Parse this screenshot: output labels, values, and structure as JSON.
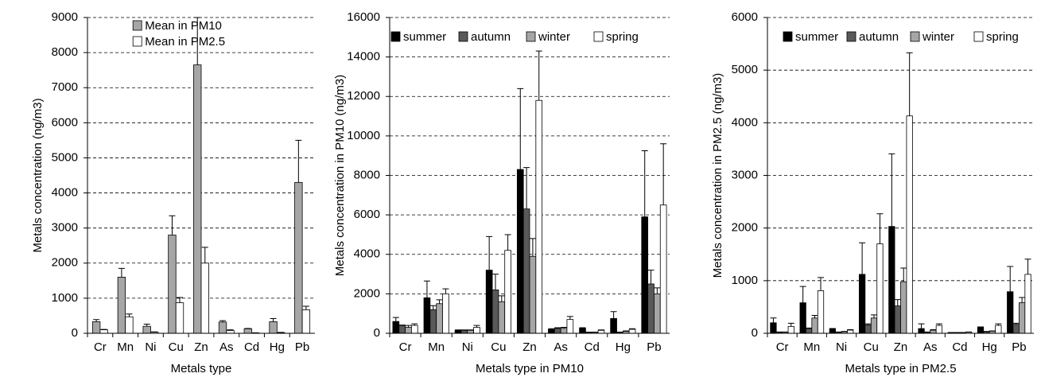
{
  "chart_data": [
    {
      "type": "bar",
      "ylabel": "Metals concentration (ng/m3)",
      "xlabel": "Metals type",
      "categories": [
        "Cr",
        "Mn",
        "Ni",
        "Cu",
        "Zn",
        "As",
        "Cd",
        "Hg",
        "Pb"
      ],
      "series": [
        {
          "name": "Mean in PM10",
          "color": "#a6a6a6",
          "values": [
            330,
            1600,
            200,
            2800,
            7650,
            320,
            130,
            330,
            4300
          ],
          "errors": [
            60,
            250,
            60,
            550,
            1350,
            40,
            10,
            90,
            1200
          ]
        },
        {
          "name": "Mean in PM2.5",
          "color": "#ffffff",
          "values": [
            100,
            470,
            30,
            870,
            2000,
            80,
            10,
            20,
            670
          ],
          "errors": [
            10,
            80,
            10,
            150,
            450,
            20,
            5,
            5,
            100
          ]
        }
      ],
      "ylim": [
        0,
        9000
      ],
      "yticks": [
        0,
        1000,
        2000,
        3000,
        4000,
        5000,
        6000,
        7000,
        8000,
        9000
      ],
      "grid": true,
      "legend": "upper-right"
    },
    {
      "type": "bar",
      "ylabel": "Metals concentration in PM10 (ng/m3)",
      "xlabel": "Metals type in PM10",
      "categories": [
        "Cr",
        "Mn",
        "Ni",
        "Cu",
        "Zn",
        "As",
        "Cd",
        "Hg",
        "Pb"
      ],
      "series": [
        {
          "name": "summer",
          "color": "#000000",
          "values": [
            600,
            1800,
            150,
            3200,
            8300,
            200,
            250,
            750,
            5900
          ],
          "errors": [
            200,
            850,
            20,
            1700,
            4100,
            30,
            30,
            350,
            3350
          ]
        },
        {
          "name": "autumn",
          "color": "#595959",
          "values": [
            400,
            1200,
            150,
            2200,
            6300,
            250,
            50,
            50,
            2500
          ],
          "errors": [
            20,
            200,
            20,
            800,
            2100,
            30,
            10,
            10,
            700
          ]
        },
        {
          "name": "winter",
          "color": "#a6a6a6",
          "values": [
            300,
            1500,
            150,
            1600,
            3900,
            250,
            50,
            100,
            2000
          ],
          "errors": [
            100,
            200,
            20,
            300,
            900,
            50,
            10,
            20,
            300
          ]
        },
        {
          "name": "spring",
          "color": "#ffffff",
          "values": [
            400,
            2000,
            300,
            4200,
            11800,
            700,
            150,
            200,
            6500
          ],
          "errors": [
            80,
            250,
            100,
            800,
            2500,
            150,
            20,
            30,
            3100
          ]
        }
      ],
      "ylim": [
        0,
        16000
      ],
      "yticks": [
        0,
        2000,
        4000,
        6000,
        8000,
        10000,
        12000,
        14000,
        16000
      ],
      "grid": true,
      "legend": "upper-left"
    },
    {
      "type": "bar",
      "ylabel": "Metals concentration in PM2.5 (ng/m3)",
      "xlabel": "Metals type in PM2.5",
      "categories": [
        "Cr",
        "Mn",
        "Ni",
        "Cu",
        "Zn",
        "As",
        "Cd",
        "Hg",
        "Pb"
      ],
      "series": [
        {
          "name": "summer",
          "color": "#000000",
          "values": [
            200,
            580,
            80,
            1120,
            2030,
            90,
            10,
            110,
            790
          ],
          "errors": [
            90,
            310,
            10,
            600,
            1380,
            90,
            5,
            10,
            480
          ]
        },
        {
          "name": "autumn",
          "color": "#595959",
          "values": [
            20,
            90,
            20,
            160,
            520,
            20,
            10,
            30,
            170
          ],
          "errors": [
            5,
            10,
            5,
            20,
            120,
            5,
            5,
            5,
            20
          ]
        },
        {
          "name": "winter",
          "color": "#a6a6a6",
          "values": [
            20,
            290,
            30,
            290,
            980,
            60,
            10,
            40,
            580
          ],
          "errors": [
            5,
            50,
            5,
            60,
            260,
            10,
            5,
            5,
            100
          ]
        },
        {
          "name": "spring",
          "color": "#ffffff",
          "values": [
            130,
            810,
            60,
            1700,
            4130,
            150,
            20,
            150,
            1120
          ],
          "errors": [
            60,
            250,
            10,
            570,
            1200,
            30,
            5,
            30,
            290
          ]
        }
      ],
      "ylim": [
        0,
        6000
      ],
      "yticks": [
        0,
        1000,
        2000,
        3000,
        4000,
        5000,
        6000
      ],
      "grid": true,
      "legend": "upper-right"
    }
  ]
}
